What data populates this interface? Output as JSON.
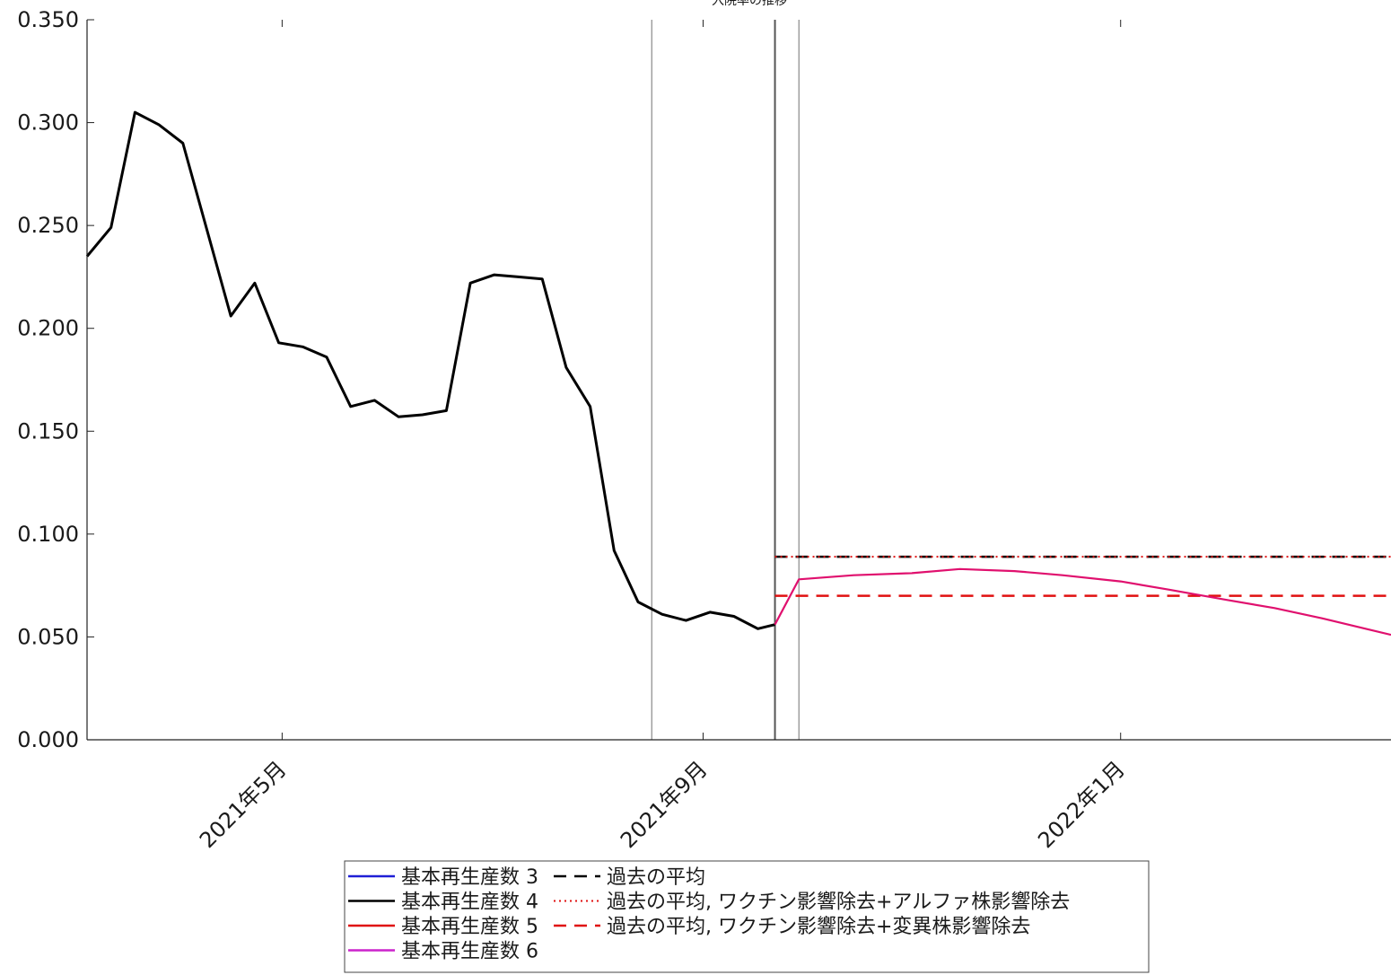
{
  "chart_data": {
    "type": "line",
    "title": "入院率の推移",
    "xlabel": "",
    "ylabel": "",
    "ylim": [
      0,
      0.35
    ],
    "yticks": [
      "0.000",
      "0.050",
      "0.100",
      "0.150",
      "0.200",
      "0.250",
      "0.300",
      "0.350"
    ],
    "xticks": [
      {
        "date": "2021-05-01",
        "label": "2021年5月"
      },
      {
        "date": "2021-09-01",
        "label": "2021年9月"
      },
      {
        "date": "2022-01-01",
        "label": "2022年1月"
      }
    ],
    "xlim": [
      "2021-03-05",
      "2022-03-21"
    ],
    "grid": false,
    "vlines": [
      "2021-08-17",
      "2021-09-22",
      "2021-09-29"
    ],
    "legend_placement": "bottom-center",
    "colors": {
      "r3": "#1f1fd6",
      "r4": "#000000",
      "r5": "#e01010",
      "r6": "#cc22cc",
      "projection": "#e0106e",
      "avg": "#000000",
      "avg_alpha": "#e01010",
      "avg_variant": "#e01010"
    },
    "series": [
      {
        "name": "基本再生産数 4",
        "key": "r4",
        "dates": [
          "2021-03-05",
          "2021-03-12",
          "2021-03-19",
          "2021-03-26",
          "2021-04-02",
          "2021-04-09",
          "2021-04-16",
          "2021-04-23",
          "2021-04-30",
          "2021-05-07",
          "2021-05-14",
          "2021-05-21",
          "2021-05-28",
          "2021-06-04",
          "2021-06-11",
          "2021-06-18",
          "2021-06-25",
          "2021-07-02",
          "2021-07-09",
          "2021-07-16",
          "2021-07-23",
          "2021-07-30",
          "2021-08-06",
          "2021-08-13",
          "2021-08-20",
          "2021-08-27",
          "2021-09-03",
          "2021-09-10",
          "2021-09-17",
          "2021-09-22"
        ],
        "values": [
          0.235,
          0.249,
          0.305,
          0.299,
          0.29,
          0.248,
          0.206,
          0.222,
          0.193,
          0.191,
          0.186,
          0.162,
          0.165,
          0.157,
          0.158,
          0.16,
          0.222,
          0.226,
          0.225,
          0.224,
          0.181,
          0.162,
          0.092,
          0.067,
          0.061,
          0.058,
          0.062,
          0.06,
          0.054,
          0.056
        ]
      },
      {
        "name": "基本再生産数 6",
        "key": "projection",
        "dates": [
          "2021-09-22",
          "2021-09-29",
          "2021-10-15",
          "2021-11-01",
          "2021-11-15",
          "2021-12-01",
          "2021-12-15",
          "2022-01-01",
          "2022-01-15",
          "2022-02-01",
          "2022-02-15",
          "2022-03-01",
          "2022-03-21"
        ],
        "values": [
          0.056,
          0.078,
          0.08,
          0.081,
          0.083,
          0.082,
          0.08,
          0.077,
          0.073,
          0.068,
          0.064,
          0.059,
          0.051
        ]
      }
    ],
    "hlines": [
      {
        "name": "過去の平均",
        "key": "avg",
        "value": 0.089,
        "from": "2021-09-22",
        "to": "2022-03-21",
        "style": "dashed"
      },
      {
        "name": "過去の平均, ワクチン影響除去+アルファ株影響除去",
        "key": "avg_alpha",
        "value": 0.089,
        "from": "2021-09-22",
        "to": "2022-03-21",
        "style": "dotted"
      },
      {
        "name": "過去の平均, ワクチン影響除去+変異株影響除去",
        "key": "avg_variant",
        "value": 0.07,
        "from": "2021-09-22",
        "to": "2022-03-21",
        "style": "dashed"
      }
    ],
    "legend": [
      {
        "label": "基本再生産数 3",
        "key": "r3",
        "style": "solid"
      },
      {
        "label": "基本再生産数 4",
        "key": "r4",
        "style": "solid"
      },
      {
        "label": "基本再生産数 5",
        "key": "r5",
        "style": "solid"
      },
      {
        "label": "基本再生産数 6",
        "key": "r6",
        "style": "solid"
      },
      {
        "label": "過去の平均",
        "key": "avg",
        "style": "dashed"
      },
      {
        "label": "過去の平均, ワクチン影響除去+アルファ株影響除去",
        "key": "avg_alpha",
        "style": "dotted"
      },
      {
        "label": "過去の平均, ワクチン影響除去+変異株影響除去",
        "key": "avg_variant",
        "style": "dashed"
      }
    ]
  }
}
